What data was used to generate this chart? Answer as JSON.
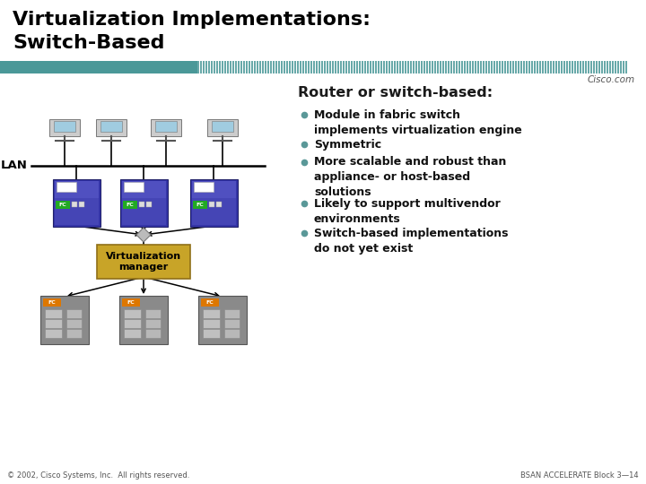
{
  "title_line1": "Virtualization Implementations:",
  "title_line2": "Switch-Based",
  "title_color": "#000000",
  "title_fontsize": 16,
  "header_bar_solid_color": "#4a9898",
  "header_bar_stripe_color": "#4a9898",
  "cisco_text": "Cisco.com",
  "section_header": "Router or switch-based:",
  "section_header_color": "#1a1a1a",
  "bullet_color": "#5a9898",
  "bullets": [
    "Module in fabric switch\nimplements virtualization engine",
    "Symmetric",
    "More scalable and robust than\nappliance- or host-based\nsolutions",
    "Likely to support multivendor\nenvironments",
    "Switch-based implementations\ndo not yet exist"
  ],
  "lan_label": "LAN",
  "virt_manager_label": "Virtualization\nmanager",
  "footer_left": "© 2002, Cisco Systems, Inc.  All rights reserved.",
  "footer_right": "BSAN ACCELERATE Block 3—14",
  "bg_color": "#ffffff",
  "switch_body_color": "#3838aa",
  "switch_top_color": "#5858cc",
  "switch_white": "#ffffff",
  "switch_mid_color": "#4848bb",
  "fc_green": "#228822",
  "storage_body_color": "#909090",
  "storage_fc_color": "#dd7700",
  "vm_box_color": "#c8a428",
  "vm_box_border": "#907018",
  "arrow_color": "#000000",
  "line_color": "#000000"
}
